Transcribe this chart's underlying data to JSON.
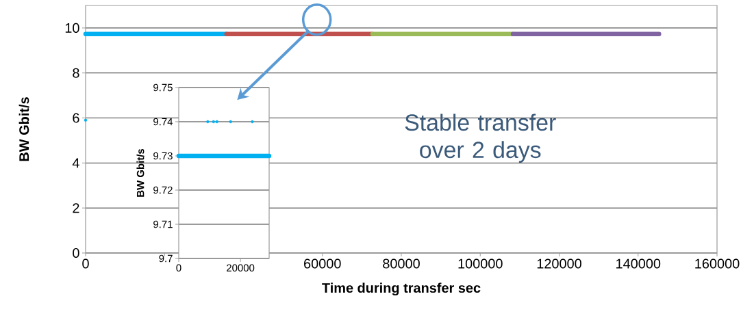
{
  "chart_data": [
    {
      "type": "line",
      "xlabel": "Time during transfer sec",
      "ylabel": "BW Gbit/s",
      "xlim": [
        0,
        160000
      ],
      "ylim": [
        0,
        11
      ],
      "xticks": [
        0,
        {
          "value": 20000,
          "label": null
        },
        {
          "value": 40000,
          "label": null
        },
        60000,
        80000,
        100000,
        120000,
        140000,
        160000
      ],
      "yticks": [
        0,
        2,
        4,
        6,
        8,
        10
      ],
      "grid": "y",
      "series": [
        {
          "color": "#00b0f0",
          "marker": "none",
          "x": [
            0,
            35700
          ],
          "values": [
            9.73,
            9.73
          ]
        },
        {
          "color": "#c0504d",
          "marker": "none",
          "x": [
            35700,
            72700
          ],
          "values": [
            9.73,
            9.73
          ]
        },
        {
          "color": "#9bbb59",
          "marker": "none",
          "x": [
            72700,
            108300
          ],
          "values": [
            9.73,
            9.73
          ]
        },
        {
          "color": "#8064a2",
          "marker": "none",
          "x": [
            108300,
            145300
          ],
          "values": [
            9.73,
            9.73
          ]
        },
        {
          "type": "scatter",
          "marker": "circle",
          "color": "#00b0f0",
          "x": [
            0
          ],
          "values": [
            5.9
          ]
        }
      ],
      "annotations": [
        "Stable transfer over 2 days"
      ]
    },
    {
      "type": "scatter",
      "ylabel": "BW Gbit/s",
      "xlim": [
        0,
        29300
      ],
      "ylim": [
        9.7,
        9.75
      ],
      "xticks": [
        0,
        20000
      ],
      "yticks": [
        9.7,
        9.71,
        9.72,
        9.73,
        9.74,
        9.75
      ],
      "grid": "y",
      "series": [
        {
          "type": "line",
          "marker": "none",
          "color": "#00b0f0",
          "x": [
            0,
            29300
          ],
          "values": [
            9.73,
            9.73
          ]
        },
        {
          "color": "#00b0f0",
          "marker": "circle",
          "x": [
            9400,
            11270,
            12380,
            16820,
            23840
          ],
          "values": [
            9.74,
            9.74,
            9.74,
            9.74,
            9.74
          ]
        }
      ]
    }
  ]
}
